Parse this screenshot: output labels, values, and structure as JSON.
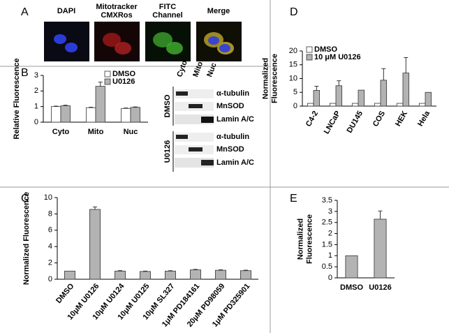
{
  "panel_labels": [
    "A",
    "B",
    "C",
    "D",
    "E"
  ],
  "microscopy": [
    [
      "DAPI"
    ],
    [
      "Mitotracker",
      "CMXRos"
    ],
    [
      "FITC",
      "Channel"
    ],
    [
      "Merge"
    ]
  ],
  "blot": {
    "lanes": [
      "Cyto",
      "Mito",
      "Nuc"
    ],
    "groups": [
      {
        "name": "DMSO",
        "rows": [
          "α-tubulin",
          "MnSOD",
          "Lamin A/C"
        ]
      },
      {
        "name": "U0126",
        "rows": [
          "α-tubulin",
          "MnSOD",
          "Lamin A/C"
        ]
      }
    ]
  },
  "chart_data": [
    {
      "type": "bar",
      "ylabel": [
        "Relative Fluorescence"
      ],
      "categories": [
        "Cyto",
        "Mito",
        "Nuc"
      ],
      "series": [
        {
          "name": "DMSO",
          "color": "#ffffff",
          "values": [
            1.0,
            0.93,
            0.88
          ],
          "errors": [
            0.03,
            0.03,
            0.03
          ]
        },
        {
          "name": "U0126",
          "color": "#b3b3b3",
          "values": [
            1.05,
            2.3,
            0.95
          ],
          "errors": [
            0.04,
            0.27,
            0.03
          ]
        }
      ],
      "ylim": [
        0,
        3
      ],
      "yticks": [
        0,
        1,
        2,
        3
      ],
      "legend": "upper right"
    },
    {
      "type": "bar",
      "ylabel": [
        "Normalized Fluorescence"
      ],
      "categories": [
        "DMSO",
        "10μM U0126",
        "10μM U0124",
        "10μM U0125",
        "10μM SL327",
        "1μM PD184161",
        "20μM PD98059",
        "1μM PD325901"
      ],
      "values": [
        1.0,
        8.55,
        1.0,
        0.95,
        1.0,
        1.15,
        1.1,
        1.05
      ],
      "errors": [
        null,
        0.3,
        0.06,
        0.05,
        0.05,
        0.06,
        0.06,
        0.06
      ],
      "color": "#b3b3b3",
      "ylim": [
        0,
        10
      ],
      "yticks": [
        0,
        2,
        4,
        6,
        8,
        10
      ]
    },
    {
      "type": "bar",
      "ylabel": [
        "Normalized",
        "Fluorescence"
      ],
      "categories": [
        "C4-2",
        "LNCaP",
        "DU145",
        "COS",
        "HEK",
        "Hela"
      ],
      "series": [
        {
          "name": "DMSO",
          "color": "#ffffff",
          "values": [
            1,
            1,
            1,
            1,
            1,
            1
          ],
          "errors": [
            null,
            null,
            null,
            null,
            null,
            null
          ]
        },
        {
          "name": "10 μM U0126",
          "color": "#b3b3b3",
          "values": [
            5.7,
            7.4,
            5.8,
            9.4,
            12,
            5.0
          ],
          "errors": [
            1.5,
            1.8,
            null,
            4.2,
            5.6,
            null
          ]
        }
      ],
      "ylim": [
        0,
        20
      ],
      "yticks": [
        0,
        5,
        10,
        15,
        20
      ],
      "legend": "upper left"
    },
    {
      "type": "bar",
      "ylabel": [
        "Normalized",
        "Fluorescence"
      ],
      "categories": [
        "DMSO",
        "U0126"
      ],
      "values": [
        1.0,
        2.65
      ],
      "errors": [
        null,
        0.37
      ],
      "color": "#b3b3b3",
      "ylim": [
        0,
        3.5
      ],
      "yticks": [
        0,
        0.5,
        1,
        1.5,
        2,
        2.5,
        3,
        3.5
      ]
    }
  ]
}
